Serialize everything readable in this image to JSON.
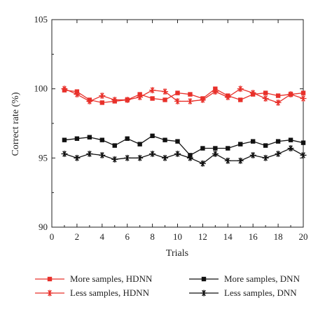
{
  "chart_data": {
    "type": "line",
    "title": "",
    "xlabel": "Trials",
    "ylabel": "Correct rate (%)",
    "xlim": [
      0,
      20
    ],
    "ylim": [
      90,
      105
    ],
    "xticks": [
      0,
      2,
      4,
      6,
      8,
      10,
      12,
      14,
      16,
      18,
      20
    ],
    "yticks": [
      90,
      95,
      100,
      105
    ],
    "grid": false,
    "legend_position": "bottom",
    "x": [
      1,
      2,
      3,
      4,
      5,
      6,
      7,
      8,
      9,
      10,
      11,
      12,
      13,
      14,
      15,
      16,
      17,
      18,
      19,
      20
    ],
    "series": [
      {
        "name": "More samples, HDNN",
        "color": "#e8302a",
        "marker": "square",
        "values": [
          99.9,
          99.8,
          99.2,
          99.0,
          99.1,
          99.2,
          99.6,
          99.3,
          99.2,
          99.7,
          99.6,
          99.3,
          100.0,
          99.5,
          99.2,
          99.6,
          99.7,
          99.5,
          99.6,
          99.7
        ]
      },
      {
        "name": "Less samples, HDNN",
        "color": "#e8302a",
        "marker": "asterisk",
        "values": [
          100.0,
          99.6,
          99.1,
          99.5,
          99.2,
          99.2,
          99.4,
          99.9,
          99.8,
          99.1,
          99.1,
          99.2,
          99.8,
          99.4,
          100.0,
          99.7,
          99.3,
          99.0,
          99.6,
          99.3
        ]
      },
      {
        "name": "More samples, DNN",
        "color": "#111111",
        "marker": "square",
        "values": [
          96.3,
          96.4,
          96.5,
          96.3,
          95.9,
          96.4,
          96.0,
          96.6,
          96.3,
          96.2,
          95.2,
          95.7,
          95.7,
          95.7,
          96.0,
          96.2,
          95.9,
          96.2,
          96.3,
          96.1
        ]
      },
      {
        "name": "Less samples, DNN",
        "color": "#111111",
        "marker": "asterisk",
        "values": [
          95.3,
          95.0,
          95.3,
          95.2,
          94.9,
          95.0,
          95.0,
          95.3,
          95.0,
          95.3,
          95.0,
          94.6,
          95.3,
          94.8,
          94.8,
          95.2,
          95.0,
          95.3,
          95.7,
          95.2
        ]
      }
    ],
    "legend": [
      {
        "label": "More samples, HDNN",
        "series": 0
      },
      {
        "label": "More samples, DNN",
        "series": 2
      },
      {
        "label": "Less samples, HDNN",
        "series": 1
      },
      {
        "label": "Less samples, DNN",
        "series": 3
      }
    ]
  }
}
